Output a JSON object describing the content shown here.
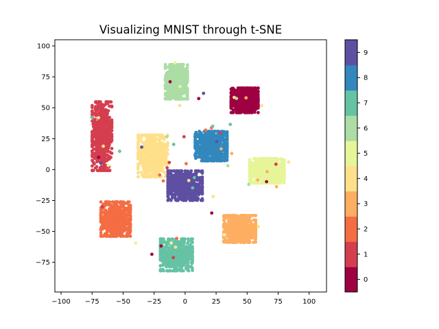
{
  "chart_data": {
    "type": "scatter",
    "title": "Visualizing MNIST through t-SNE",
    "xlabel": "",
    "ylabel": "",
    "xlim": [
      -105,
      114
    ],
    "ylim": [
      -99,
      105
    ],
    "xticks": [
      -100,
      -75,
      -50,
      -25,
      0,
      25,
      50,
      75,
      100
    ],
    "yticks": [
      -75,
      -50,
      -25,
      0,
      25,
      50,
      75,
      100
    ],
    "grid": false,
    "colorbar": {
      "labels": [
        "0",
        "1",
        "2",
        "3",
        "4",
        "5",
        "6",
        "7",
        "8",
        "9"
      ],
      "position": "right"
    },
    "clusters": [
      {
        "label": "0",
        "color": "#9e0142",
        "center": [
          48,
          56
        ],
        "spread": [
          11,
          10
        ]
      },
      {
        "label": "1",
        "color": "#d53e4f",
        "center": [
          -67,
          27
        ],
        "spread": [
          8,
          28
        ]
      },
      {
        "label": "2",
        "color": "#f46d43",
        "center": [
          -56,
          -40
        ],
        "spread": [
          12,
          14
        ]
      },
      {
        "label": "3",
        "color": "#fdae61",
        "center": [
          44,
          -48
        ],
        "spread": [
          13,
          11
        ]
      },
      {
        "label": "4",
        "color": "#fee08b",
        "center": [
          -26,
          11
        ],
        "spread": [
          12,
          17
        ]
      },
      {
        "label": "5",
        "color": "#e6f598",
        "center": [
          66,
          -1
        ],
        "spread": [
          14,
          10
        ]
      },
      {
        "label": "6",
        "color": "#abdda4",
        "center": [
          -7,
          71
        ],
        "spread": [
          9,
          14
        ]
      },
      {
        "label": "7",
        "color": "#66c2a5",
        "center": [
          -7,
          -69
        ],
        "spread": [
          13,
          13
        ]
      },
      {
        "label": "8",
        "color": "#3288bd",
        "center": [
          21,
          19
        ],
        "spread": [
          13,
          12
        ]
      },
      {
        "label": "9",
        "color": "#5e4fa2",
        "center": [
          0,
          -13
        ],
        "spread": [
          14,
          12
        ]
      }
    ]
  }
}
